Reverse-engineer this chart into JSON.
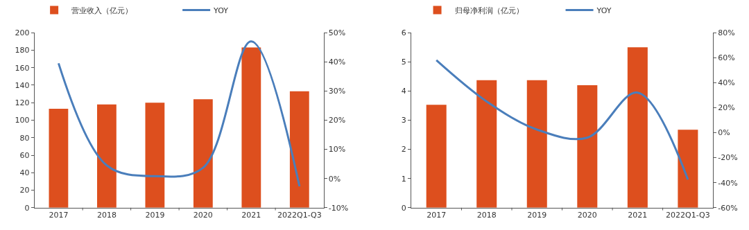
{
  "chart_data": [
    {
      "type": "bar",
      "categories": [
        "2017",
        "2018",
        "2019",
        "2020",
        "2021",
        "2022Q1-Q3"
      ],
      "series": [
        {
          "name": "营业收入（亿元）",
          "color": "#dd4f1e",
          "values": [
            113,
            118,
            120,
            124,
            183,
            133
          ]
        },
        {
          "name": "YOY",
          "type": "line",
          "axis": "y2",
          "color": "#4a7ebb",
          "values": [
            39.5,
            4.5,
            0.8,
            3.7,
            47,
            -2.7
          ]
        }
      ],
      "ylim": [
        0,
        200
      ],
      "yticks": [
        0,
        20,
        40,
        60,
        80,
        100,
        120,
        140,
        160,
        180,
        200
      ],
      "y2lim": [
        -10,
        50
      ],
      "y2ticks": [
        {
          "value": -10,
          "label": "-10%"
        },
        {
          "value": 0,
          "label": "0%"
        },
        {
          "value": 10,
          "label": "10%"
        },
        {
          "value": 20,
          "label": "20%"
        },
        {
          "value": 30,
          "label": "30%"
        },
        {
          "value": 40,
          "label": "40%"
        },
        {
          "value": 50,
          "label": "50%"
        }
      ],
      "legend": "top",
      "grid": false
    },
    {
      "type": "bar",
      "categories": [
        "2017",
        "2018",
        "2019",
        "2020",
        "2021",
        "2022Q1-Q3"
      ],
      "series": [
        {
          "name": "归母净利润（亿元）",
          "color": "#dd4f1e",
          "values": [
            3.53,
            4.37,
            4.37,
            4.2,
            5.5,
            2.67
          ]
        },
        {
          "name": "YOY",
          "type": "line",
          "axis": "y2",
          "color": "#4a7ebb",
          "values": [
            58,
            25,
            2.5,
            -4,
            32,
            -37.5
          ]
        }
      ],
      "ylim": [
        0,
        6
      ],
      "yticks": [
        0,
        1,
        2,
        3,
        4,
        5,
        6
      ],
      "y2lim": [
        -60,
        80
      ],
      "y2ticks": [
        {
          "value": -60,
          "label": "-60%"
        },
        {
          "value": -40,
          "label": "-40%"
        },
        {
          "value": -20,
          "label": "-20%"
        },
        {
          "value": 0,
          "label": "0%"
        },
        {
          "value": 20,
          "label": "20%"
        },
        {
          "value": 40,
          "label": "40%"
        },
        {
          "value": 60,
          "label": "60%"
        },
        {
          "value": 80,
          "label": "80%"
        }
      ],
      "legend": "top",
      "grid": false
    }
  ]
}
